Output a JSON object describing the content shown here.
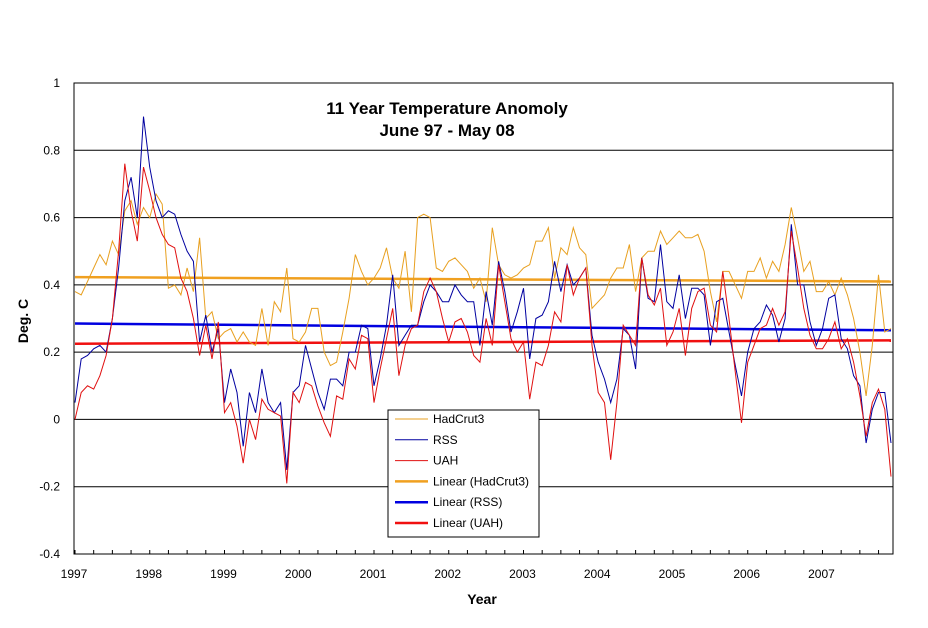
{
  "chart_data": {
    "type": "line",
    "title": "11 Year Temperature Anomoly",
    "subtitle": "June 97 - May 08",
    "xlabel": "Year",
    "ylabel": "Deg. C",
    "ylim": [
      -0.4,
      1.0
    ],
    "yticks": [
      "1",
      "0.8",
      "0.6",
      "0.4",
      "0.2",
      "0",
      "-0.2",
      "-0.4"
    ],
    "ytick_values": [
      1,
      0.8,
      0.6,
      0.4,
      0.2,
      0,
      -0.2,
      -0.4
    ],
    "xtick_labels": [
      "1997",
      "1998",
      "1999",
      "2000",
      "2001",
      "2002",
      "2003",
      "2004",
      "2005",
      "2006",
      "2007"
    ],
    "x_period": "monthly, June 1997 - May 2008",
    "grid": "horizontal",
    "legend_position": "bottom-center",
    "series": [
      {
        "name": "HadCrut3",
        "color": "#E8A020",
        "values": [
          0.38,
          0.37,
          0.41,
          0.45,
          0.49,
          0.46,
          0.53,
          0.49,
          0.62,
          0.65,
          0.58,
          0.63,
          0.6,
          0.67,
          0.64,
          0.39,
          0.4,
          0.37,
          0.45,
          0.38,
          0.54,
          0.3,
          0.32,
          0.24,
          0.26,
          0.27,
          0.23,
          0.26,
          0.23,
          0.22,
          0.33,
          0.22,
          0.35,
          0.32,
          0.45,
          0.24,
          0.23,
          0.26,
          0.33,
          0.33,
          0.2,
          0.16,
          0.17,
          0.26,
          0.36,
          0.49,
          0.44,
          0.4,
          0.42,
          0.45,
          0.51,
          0.42,
          0.39,
          0.5,
          0.32,
          0.6,
          0.61,
          0.6,
          0.45,
          0.44,
          0.47,
          0.48,
          0.46,
          0.44,
          0.39,
          0.42,
          0.35,
          0.57,
          0.46,
          0.43,
          0.42,
          0.43,
          0.45,
          0.46,
          0.53,
          0.53,
          0.57,
          0.42,
          0.51,
          0.49,
          0.57,
          0.51,
          0.49,
          0.33,
          0.35,
          0.37,
          0.42,
          0.45,
          0.45,
          0.52,
          0.38,
          0.48,
          0.5,
          0.5,
          0.56,
          0.52,
          0.54,
          0.56,
          0.54,
          0.54,
          0.55,
          0.5,
          0.38,
          0.29,
          0.44,
          0.44,
          0.4,
          0.36,
          0.44,
          0.44,
          0.48,
          0.42,
          0.47,
          0.44,
          0.52,
          0.63,
          0.54,
          0.44,
          0.47,
          0.38,
          0.38,
          0.41,
          0.37,
          0.42,
          0.37,
          0.3,
          0.2,
          0.07,
          0.22,
          0.43,
          0.26,
          0.27
        ]
      },
      {
        "name": "RSS",
        "color": "#0000A0",
        "values": [
          0.05,
          0.18,
          0.19,
          0.21,
          0.22,
          0.2,
          0.3,
          0.45,
          0.65,
          0.72,
          0.6,
          0.9,
          0.75,
          0.65,
          0.6,
          0.62,
          0.61,
          0.55,
          0.5,
          0.47,
          0.23,
          0.31,
          0.2,
          0.27,
          0.05,
          0.15,
          0.08,
          -0.08,
          0.08,
          0.02,
          0.15,
          0.05,
          0.02,
          0.05,
          -0.15,
          0.08,
          0.1,
          0.22,
          0.15,
          0.08,
          0.03,
          0.12,
          0.12,
          0.1,
          0.2,
          0.2,
          0.28,
          0.27,
          0.1,
          0.18,
          0.28,
          0.43,
          0.22,
          0.25,
          0.28,
          0.28,
          0.35,
          0.4,
          0.38,
          0.35,
          0.35,
          0.4,
          0.37,
          0.35,
          0.35,
          0.22,
          0.38,
          0.28,
          0.47,
          0.38,
          0.26,
          0.32,
          0.39,
          0.18,
          0.3,
          0.31,
          0.35,
          0.47,
          0.38,
          0.46,
          0.4,
          0.42,
          0.45,
          0.25,
          0.17,
          0.12,
          0.05,
          0.12,
          0.27,
          0.25,
          0.15,
          0.48,
          0.36,
          0.35,
          0.52,
          0.35,
          0.33,
          0.43,
          0.3,
          0.39,
          0.39,
          0.37,
          0.22,
          0.35,
          0.36,
          0.26,
          0.16,
          0.07,
          0.2,
          0.27,
          0.29,
          0.34,
          0.31,
          0.23,
          0.3,
          0.58,
          0.4,
          0.4,
          0.29,
          0.22,
          0.27,
          0.36,
          0.37,
          0.24,
          0.21,
          0.13,
          0.1,
          -0.07,
          0.03,
          0.08,
          0.08,
          -0.07
        ]
      },
      {
        "name": "UAH",
        "color": "#E01010",
        "values": [
          0.0,
          0.08,
          0.1,
          0.09,
          0.13,
          0.19,
          0.3,
          0.5,
          0.76,
          0.62,
          0.53,
          0.75,
          0.68,
          0.6,
          0.55,
          0.52,
          0.51,
          0.42,
          0.38,
          0.3,
          0.19,
          0.28,
          0.18,
          0.29,
          0.02,
          0.05,
          -0.02,
          -0.13,
          0.0,
          -0.06,
          0.06,
          0.03,
          0.02,
          0.01,
          -0.19,
          0.08,
          0.05,
          0.11,
          0.1,
          0.04,
          -0.01,
          -0.05,
          0.07,
          0.06,
          0.18,
          0.15,
          0.25,
          0.24,
          0.05,
          0.15,
          0.24,
          0.33,
          0.13,
          0.22,
          0.27,
          0.28,
          0.38,
          0.42,
          0.38,
          0.3,
          0.23,
          0.29,
          0.3,
          0.26,
          0.19,
          0.17,
          0.3,
          0.22,
          0.46,
          0.35,
          0.24,
          0.2,
          0.23,
          0.06,
          0.17,
          0.16,
          0.22,
          0.32,
          0.29,
          0.46,
          0.37,
          0.42,
          0.45,
          0.22,
          0.08,
          0.05,
          -0.12,
          0.05,
          0.28,
          0.25,
          0.22,
          0.48,
          0.37,
          0.34,
          0.39,
          0.22,
          0.26,
          0.33,
          0.19,
          0.33,
          0.38,
          0.39,
          0.28,
          0.26,
          0.44,
          0.3,
          0.14,
          -0.01,
          0.17,
          0.22,
          0.27,
          0.28,
          0.33,
          0.28,
          0.32,
          0.56,
          0.45,
          0.33,
          0.25,
          0.21,
          0.21,
          0.24,
          0.29,
          0.21,
          0.24,
          0.17,
          0.07,
          -0.05,
          0.05,
          0.09,
          0.03,
          -0.17
        ]
      },
      {
        "name": "Linear (HadCrut3)",
        "color": "#F0A020",
        "trend": [
          0.423,
          0.41
        ]
      },
      {
        "name": "Linear (RSS)",
        "color": "#0000E0",
        "trend": [
          0.285,
          0.265
        ]
      },
      {
        "name": "Linear (UAH)",
        "color": "#F01010",
        "trend": [
          0.225,
          0.235
        ]
      }
    ]
  }
}
